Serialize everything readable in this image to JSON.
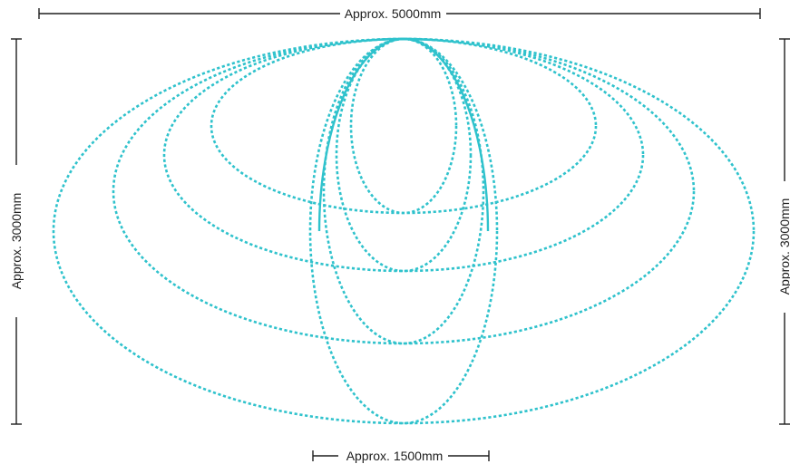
{
  "colors": {
    "outline": "#2fc2cc",
    "dimension": "#1e1e1e",
    "background": "#ffffff"
  },
  "dimensions": {
    "width_total": "Approx. 5000mm",
    "height_left": "Approx. 3000mm",
    "height_right": "Approx. 3000mm",
    "width_narrow": "Approx. 1500mm"
  },
  "shapes": {
    "description_count": 8,
    "style": "dotted ellipses sharing top point; one solid narrow ellipse"
  }
}
